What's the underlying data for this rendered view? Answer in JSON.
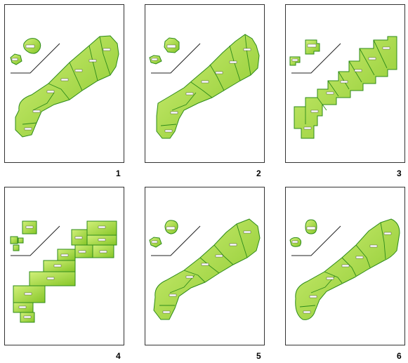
{
  "panels": [
    {
      "number": "1",
      "style": "smooth"
    },
    {
      "number": "2",
      "style": "jagged"
    },
    {
      "number": "3",
      "style": "blocky"
    },
    {
      "number": "4",
      "style": "rectangles"
    },
    {
      "number": "5",
      "style": "smooth"
    },
    {
      "number": "6",
      "style": "rounded"
    }
  ],
  "colors": {
    "land_light": "#c6e86a",
    "land_dark": "#88c92a",
    "border": "#2e8b1a",
    "frame": "#333333"
  }
}
